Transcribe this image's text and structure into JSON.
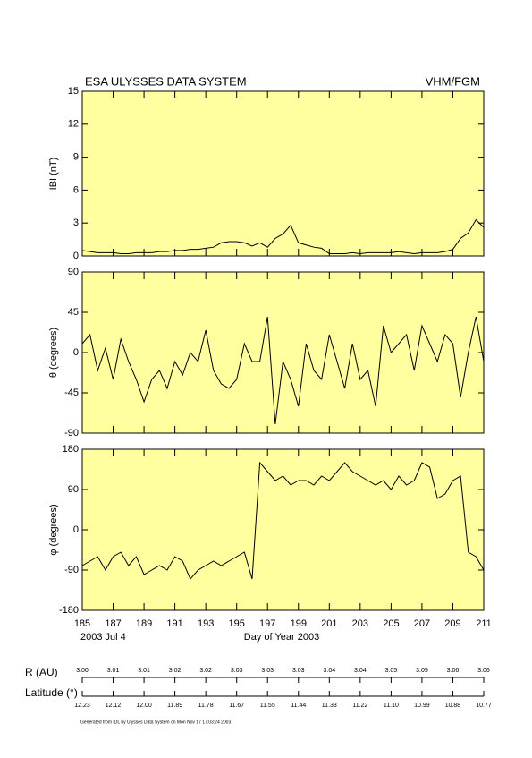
{
  "title": "ESA ULYSSES DATA SYSTEM",
  "instrument": "VHM/FGM",
  "date_label": "2003 Jul  4",
  "chart_data": [
    {
      "type": "line",
      "ylabel": "IBI (nT)",
      "ylim": [
        0,
        15
      ],
      "yticks": [
        0,
        3,
        6,
        9,
        12,
        15
      ],
      "xlim": [
        185,
        211
      ],
      "x": [
        185,
        185.5,
        186,
        186.5,
        187,
        187.5,
        188,
        188.5,
        189,
        189.5,
        190,
        190.5,
        191,
        191.5,
        192,
        192.5,
        193,
        193.5,
        194,
        194.5,
        195,
        195.5,
        196,
        196.5,
        197,
        197.5,
        198,
        198.5,
        199,
        199.5,
        200,
        200.5,
        201,
        201.5,
        202,
        202.5,
        203,
        203.5,
        204,
        204.5,
        205,
        205.5,
        206,
        206.5,
        207,
        207.5,
        208,
        208.5,
        209,
        209.5,
        210,
        210.5,
        211
      ],
      "series": [
        {
          "color": "#000000",
          "values": [
            0.5,
            0.4,
            0.3,
            0.3,
            0.3,
            0.2,
            0.2,
            0.3,
            0.3,
            0.3,
            0.4,
            0.4,
            0.5,
            0.5,
            0.6,
            0.6,
            0.7,
            0.8,
            1.2,
            1.3,
            1.3,
            1.2,
            0.9,
            1.2,
            0.8,
            1.6,
            2.0,
            2.8,
            1.2,
            1.0,
            0.8,
            0.7,
            0.2,
            0.2,
            0.2,
            0.3,
            0.2,
            0.3,
            0.3,
            0.3,
            0.3,
            0.4,
            0.3,
            0.2,
            0.3,
            0.3,
            0.3,
            0.4,
            0.6,
            1.6,
            2.1,
            3.3,
            2.6
          ]
        }
      ]
    },
    {
      "type": "line",
      "ylabel": "θ (degrees)",
      "ylim": [
        -90,
        90
      ],
      "yticks": [
        -90,
        -45,
        0,
        45,
        90
      ],
      "xlim": [
        185,
        211
      ],
      "x": [
        185,
        185.5,
        186,
        186.5,
        187,
        187.5,
        188,
        188.5,
        189,
        189.5,
        190,
        190.5,
        191,
        191.5,
        192,
        192.5,
        193,
        193.5,
        194,
        194.5,
        195,
        195.5,
        196,
        196.5,
        197,
        197.5,
        198,
        198.5,
        199,
        199.5,
        200,
        200.5,
        201,
        201.5,
        202,
        202.5,
        203,
        203.5,
        204,
        204.5,
        205,
        205.5,
        206,
        206.5,
        207,
        207.5,
        208,
        208.5,
        209,
        209.5,
        210,
        210.5,
        211
      ],
      "series": [
        {
          "color": "#000000",
          "values": [
            10,
            20,
            -20,
            5,
            -30,
            15,
            -10,
            -30,
            -55,
            -30,
            -20,
            -40,
            -10,
            -25,
            0,
            -10,
            25,
            -20,
            -35,
            -40,
            -30,
            10,
            -10,
            -10,
            40,
            -80,
            -10,
            -30,
            -60,
            10,
            -20,
            -30,
            20,
            -10,
            -40,
            10,
            -30,
            -20,
            -60,
            30,
            0,
            10,
            20,
            -20,
            30,
            10,
            -10,
            20,
            10,
            -50,
            0,
            40,
            -10
          ]
        }
      ]
    },
    {
      "type": "line",
      "ylabel": "φ (degrees)",
      "ylim": [
        -180,
        180
      ],
      "yticks": [
        -180,
        -90,
        0,
        90,
        180
      ],
      "xlim": [
        185,
        211
      ],
      "xticks": [
        185,
        187,
        189,
        191,
        193,
        195,
        197,
        199,
        201,
        203,
        205,
        207,
        209,
        211
      ],
      "xlabel": "Day of Year 2003",
      "x": [
        185,
        185.5,
        186,
        186.5,
        187,
        187.5,
        188,
        188.5,
        189,
        189.5,
        190,
        190.5,
        191,
        191.5,
        192,
        192.5,
        193,
        193.5,
        194,
        194.5,
        195,
        195.5,
        196,
        196.5,
        197,
        197.5,
        198,
        198.5,
        199,
        199.5,
        200,
        200.5,
        201,
        201.5,
        202,
        202.5,
        203,
        203.5,
        204,
        204.5,
        205,
        205.5,
        206,
        206.5,
        207,
        207.5,
        208,
        208.5,
        209,
        209.5,
        210,
        210.5,
        211
      ],
      "series": [
        {
          "color": "#000000",
          "values": [
            -80,
            -70,
            -60,
            -90,
            -60,
            -50,
            -80,
            -60,
            -100,
            -90,
            -80,
            -90,
            -60,
            -70,
            -110,
            -90,
            -80,
            -70,
            -80,
            -70,
            -60,
            -50,
            -110,
            150,
            130,
            110,
            120,
            100,
            110,
            110,
            100,
            120,
            110,
            130,
            150,
            130,
            120,
            110,
            100,
            110,
            90,
            120,
            100,
            110,
            150,
            140,
            70,
            80,
            110,
            120,
            -50,
            -60,
            -90
          ]
        }
      ]
    }
  ],
  "orbit": {
    "r_label": "R (AU)",
    "r_values": [
      "3.00",
      "3.01",
      "3.01",
      "3.02",
      "3.02",
      "3.03",
      "3.03",
      "3.03",
      "3.04",
      "3.04",
      "3.05",
      "3.05",
      "3.06",
      "3.06"
    ],
    "lat_label": "Latitude (°)",
    "lat_values": [
      "12.23",
      "12.12",
      "12.00",
      "11.89",
      "11.78",
      "11.67",
      "11.55",
      "11.44",
      "11.33",
      "11.22",
      "11.10",
      "10.99",
      "10.88",
      "10.77"
    ]
  },
  "footer": "Generated from IDL by Ulysses Data System on Mon Nov 17 17:03:24 2003"
}
